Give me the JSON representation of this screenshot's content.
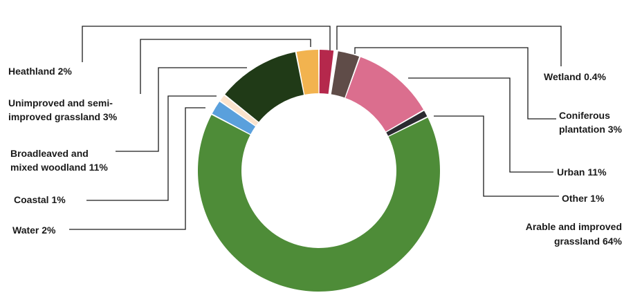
{
  "chart_data": {
    "type": "pie",
    "style": "donut",
    "legend": "none",
    "grid": false,
    "slices": [
      {
        "name": "Heathland",
        "value": 2,
        "color": "#b5284c",
        "label_lines": [
          "Heathland  2%"
        ]
      },
      {
        "name": "Wetland",
        "value": 0.4,
        "color": "#ffffff",
        "label_lines": [
          "Wetland 0.4%"
        ]
      },
      {
        "name": "Coniferous plantation",
        "value": 3,
        "color": "#5f4c48",
        "label_lines": [
          "Coniferous",
          "plantation  3%"
        ]
      },
      {
        "name": "Urban",
        "value": 11,
        "color": "#db6e8e",
        "label_lines": [
          "Urban 11%"
        ]
      },
      {
        "name": "Other",
        "value": 1,
        "color": "#2b2b30",
        "label_lines": [
          "Other  1%"
        ]
      },
      {
        "name": "Arable and improved grassland",
        "value": 64,
        "color": "#4e8c38",
        "label_lines": [
          "Arable and improved",
          "grassland 64%"
        ]
      },
      {
        "name": "Water",
        "value": 2,
        "color": "#5aa0dc",
        "label_lines": [
          "Water 2%"
        ]
      },
      {
        "name": "Coastal",
        "value": 1,
        "color": "#fbe3cc",
        "label_lines": [
          "Coastal  1%"
        ]
      },
      {
        "name": "Broadleaved and mixed woodland",
        "value": 11,
        "color": "#203a17",
        "label_lines": [
          "Broadleaved and",
          "mixed woodland 11%"
        ]
      },
      {
        "name": "Unimproved and semi-improved grassland",
        "value": 3,
        "color": "#f2b34f",
        "label_lines": [
          "Unimproved and semi-",
          "improved grassland 3%"
        ]
      }
    ]
  }
}
